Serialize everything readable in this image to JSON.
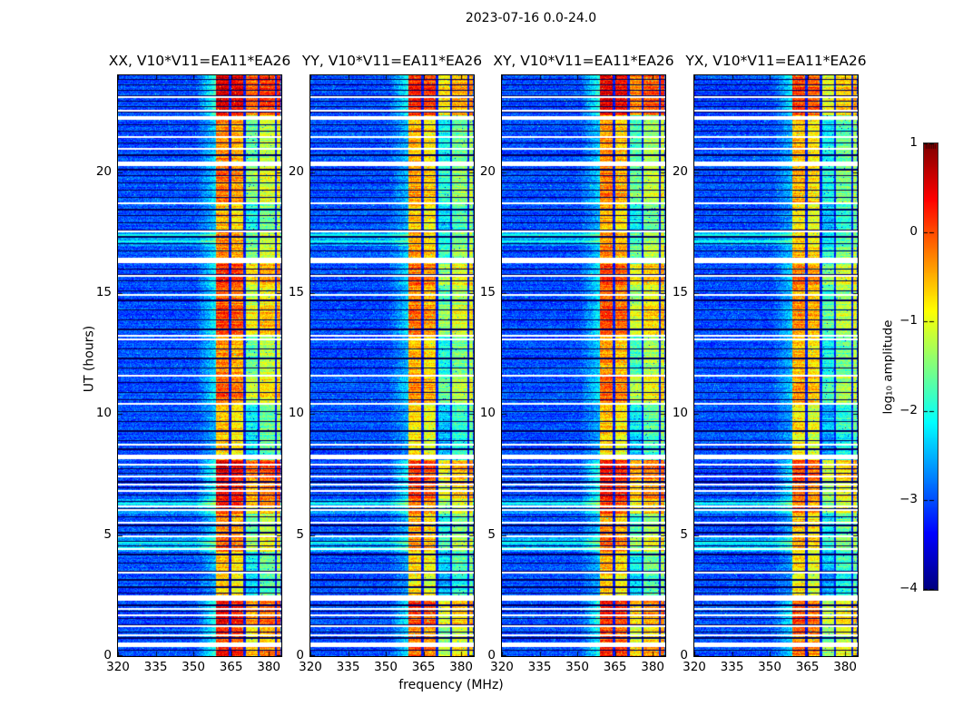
{
  "chart_data": {
    "type": "heatmap",
    "title": "2023-07-16 0.0-24.0",
    "xlabel": "frequency (MHz)",
    "ylabel": "UT (hours)",
    "x_range_mhz": [
      320,
      385
    ],
    "y_range_hours": [
      0,
      24
    ],
    "x_ticks": [
      "320",
      "335",
      "350",
      "365",
      "380"
    ],
    "x_tick_values_mhz": [
      320,
      335,
      350,
      365,
      380
    ],
    "y_ticks": [
      "0",
      "5",
      "10",
      "15",
      "20"
    ],
    "y_tick_values_hours": [
      0,
      5,
      10,
      15,
      20
    ],
    "grid": false,
    "panels": [
      {
        "label": "XX",
        "title": "XX, V10*V11=EA11*EA26",
        "band_factor": 1.0,
        "seed": 101
      },
      {
        "label": "YY",
        "title": "YY, V10*V11=EA11*EA26",
        "band_factor": 0.8,
        "seed": 202
      },
      {
        "label": "XY",
        "title": "XY, V10*V11=EA11*EA26",
        "band_factor": 0.94,
        "seed": 303
      },
      {
        "label": "YX",
        "title": "YX, V10*V11=EA11*EA26",
        "band_factor": 0.74,
        "seed": 404
      }
    ],
    "colorbar": {
      "label": "log₁₀ amplitude",
      "tick_labels": [
        "1",
        "0",
        "−1",
        "−2",
        "−3",
        "−4"
      ],
      "tick_values": [
        1,
        0,
        -1,
        -2,
        -3,
        -4
      ],
      "range": [
        -4,
        1
      ],
      "colormap": "jet",
      "position": "right"
    },
    "background_level_log10": [
      -3.35,
      -2.7
    ],
    "rfi_band": {
      "start_mhz": 359.0,
      "end_mhz": 384.5,
      "divider_mhz": [
        364.6,
        370.4,
        376.0,
        382.8
      ],
      "column_level_adjust": [
        0.32,
        0.08,
        -1.25,
        -0.75,
        -0.45
      ],
      "leadin_start_mhz": 351.0
    },
    "scan_regions": [
      {
        "t_hi": 24.0,
        "t_lo": 22.35,
        "band_level": 0.97,
        "bg": "blue"
      },
      {
        "t_hi": 22.35,
        "t_lo": 20.45,
        "band_level": 0.55,
        "bg": "blue"
      },
      {
        "t_hi": 20.45,
        "t_lo": 18.7,
        "band_level": 0.6,
        "bg": "blue"
      },
      {
        "t_hi": 18.7,
        "t_lo": 17.6,
        "band_level": 0.45,
        "bg": "blue"
      },
      {
        "t_hi": 17.6,
        "t_lo": 16.95,
        "band_level": 0.55,
        "bg": "cyan"
      },
      {
        "t_hi": 16.95,
        "t_lo": 16.2,
        "band_level": 0.6,
        "bg": "blue"
      },
      {
        "t_hi": 16.2,
        "t_lo": 15.35,
        "band_level": 0.8,
        "bg": "blue"
      },
      {
        "t_hi": 15.35,
        "t_lo": 14.5,
        "band_level": 0.65,
        "bg": "blue"
      },
      {
        "t_hi": 14.5,
        "t_lo": 13.25,
        "band_level": 0.75,
        "bg": "blue"
      },
      {
        "t_hi": 13.25,
        "t_lo": 11.55,
        "band_level": 0.55,
        "bg": "blue"
      },
      {
        "t_hi": 11.55,
        "t_lo": 10.4,
        "band_level": 0.7,
        "bg": "blue"
      },
      {
        "t_hi": 10.4,
        "t_lo": 9.1,
        "band_level": 0.42,
        "bg": "blue"
      },
      {
        "t_hi": 9.1,
        "t_lo": 8.1,
        "band_level": 0.38,
        "bg": "blue"
      },
      {
        "t_hi": 8.1,
        "t_lo": 7.3,
        "band_level": 0.95,
        "bg": "blue"
      },
      {
        "t_hi": 7.3,
        "t_lo": 6.5,
        "band_level": 0.88,
        "bg": "blue"
      },
      {
        "t_hi": 6.5,
        "t_lo": 5.9,
        "band_level": 0.8,
        "bg": "cyan"
      },
      {
        "t_hi": 5.9,
        "t_lo": 4.9,
        "band_level": 0.55,
        "bg": "blue"
      },
      {
        "t_hi": 4.9,
        "t_lo": 4.3,
        "band_level": 0.65,
        "bg": "cyan"
      },
      {
        "t_hi": 4.3,
        "t_lo": 3.6,
        "band_level": 0.45,
        "bg": "blue"
      },
      {
        "t_hi": 3.6,
        "t_lo": 2.5,
        "band_level": 0.38,
        "bg": "blue"
      },
      {
        "t_hi": 2.5,
        "t_lo": 1.2,
        "band_level": 0.9,
        "bg": "blue"
      },
      {
        "t_hi": 1.2,
        "t_lo": 0.58,
        "band_level": 0.75,
        "bg": "blue"
      },
      {
        "t_hi": 0.58,
        "t_lo": 0.0,
        "band_level": 0.85,
        "bg": "blue"
      }
    ],
    "data_gaps_hours": [
      [
        22.15,
        22.33
      ],
      [
        20.25,
        20.42
      ],
      [
        16.22,
        16.45
      ],
      [
        8.12,
        8.33
      ],
      [
        2.27,
        2.5
      ],
      [
        0.36,
        0.57
      ]
    ],
    "white_lines_hours": [
      23.1,
      22.55,
      21.45,
      20.95,
      18.72,
      17.55,
      15.7,
      14.93,
      13.25,
      13.08,
      11.57,
      10.42,
      8.72,
      7.9,
      7.42,
      7.08,
      6.82,
      6.18,
      6.04,
      5.52,
      4.94,
      4.42,
      3.45,
      1.95,
      1.68,
      1.22,
      0.85
    ],
    "scan_boundaries_hours": [
      23.82,
      23.6,
      23.38,
      23.15,
      22.92,
      22.7,
      22.48,
      21.95,
      21.7,
      21.2,
      20.7,
      20.1,
      19.85,
      19.55,
      19.25,
      18.95,
      18.45,
      18.2,
      17.9,
      17.6,
      17.32,
      17.05,
      16.75,
      16.0,
      15.75,
      15.5,
      15.1,
      14.7,
      14.3,
      13.9,
      13.5,
      13.1,
      12.7,
      12.3,
      11.9,
      11.3,
      10.9,
      10.6,
      10.1,
      9.7,
      9.3,
      8.9,
      8.55,
      7.75,
      7.55,
      7.2,
      6.95,
      6.65,
      6.4,
      6.1,
      5.75,
      5.4,
      5.1,
      4.75,
      4.55,
      4.2,
      3.85,
      3.5,
      3.15,
      2.85,
      2.6,
      2.1,
      1.85,
      1.55,
      1.3,
      1.0,
      0.75,
      0.25
    ]
  }
}
